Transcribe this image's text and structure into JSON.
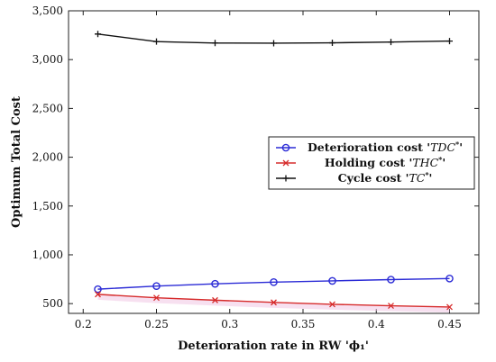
{
  "chart_data": {
    "type": "line",
    "title": "",
    "xlabel": "Deterioration rate in RW 'ϕ₁'",
    "ylabel": "Optimum Total Cost",
    "xlim": [
      0.19,
      0.47
    ],
    "ylim": [
      400,
      3500
    ],
    "xticks": [
      0.2,
      0.25,
      0.3,
      0.35,
      0.4,
      0.45
    ],
    "xtick_labels": [
      "0.2",
      "0.25",
      "0.3",
      "0.35",
      "0.4",
      "0.45"
    ],
    "yticks": [
      500,
      1000,
      1500,
      2000,
      2500,
      3000,
      3500
    ],
    "ytick_labels": [
      "500",
      "1,000",
      "1,500",
      "2,000",
      "2,500",
      "3,000",
      "3,500"
    ],
    "legend_position": "right",
    "grid": false,
    "x": [
      0.21,
      0.25,
      0.29,
      0.33,
      0.37,
      0.41,
      0.45
    ],
    "series": [
      {
        "name": "Deterioration cost 'TDC*'",
        "name_prefix": "Deterioration cost '",
        "name_math": "TDC",
        "name_suffix": "'",
        "color": "#2b2bd6",
        "marker": "circle",
        "values": [
          648,
          680,
          703,
          720,
          733,
          746,
          757
        ]
      },
      {
        "name": "Holding cost 'THC*'",
        "name_prefix": "Holding cost '",
        "name_math": "THC",
        "name_suffix": "'",
        "color": "#d62b2b",
        "marker": "x",
        "values": [
          595,
          560,
          535,
          512,
          493,
          478,
          465
        ]
      },
      {
        "name": "Cycle cost 'TC*'",
        "name_prefix": "Cycle cost '",
        "name_math": "TC",
        "name_suffix": "'",
        "color": "#111111",
        "marker": "plus",
        "values": [
          3262,
          3185,
          3170,
          3168,
          3172,
          3180,
          3190
        ]
      }
    ]
  }
}
